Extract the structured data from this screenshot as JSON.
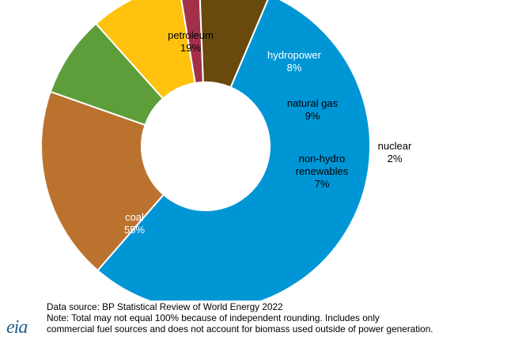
{
  "chart_data": {
    "type": "pie",
    "title": "",
    "categories": [
      "coal",
      "petroleum",
      "hydropower",
      "natural gas",
      "nuclear",
      "non-hydro renewables"
    ],
    "values": [
      55,
      19,
      8,
      9,
      2,
      7
    ],
    "labels": [
      {
        "name": "coal",
        "value_text": "55%"
      },
      {
        "name": "petroleum",
        "value_text": "19%"
      },
      {
        "name": "hydropower",
        "value_text": "8%"
      },
      {
        "name": "natural gas",
        "value_text": "9%"
      },
      {
        "name": "nuclear",
        "value_text": "2%"
      },
      {
        "name_lines": [
          "non-hydro",
          "renewables"
        ],
        "value_text": "7%"
      }
    ],
    "colors": [
      "#0096d6",
      "#bb722f",
      "#5d9e3a",
      "#ffc20e",
      "#a3304a",
      "#6a4a0c"
    ],
    "legend": "none"
  },
  "footer": {
    "source": "Data source: BP Statistical Review of World Energy 2022",
    "note_line1": "Note: Total may not equal 100% because of independent rounding. Includes only",
    "note_line2": "commercial fuel sources and does not account for biomass used outside of power generation.",
    "logo_text": "eia"
  }
}
